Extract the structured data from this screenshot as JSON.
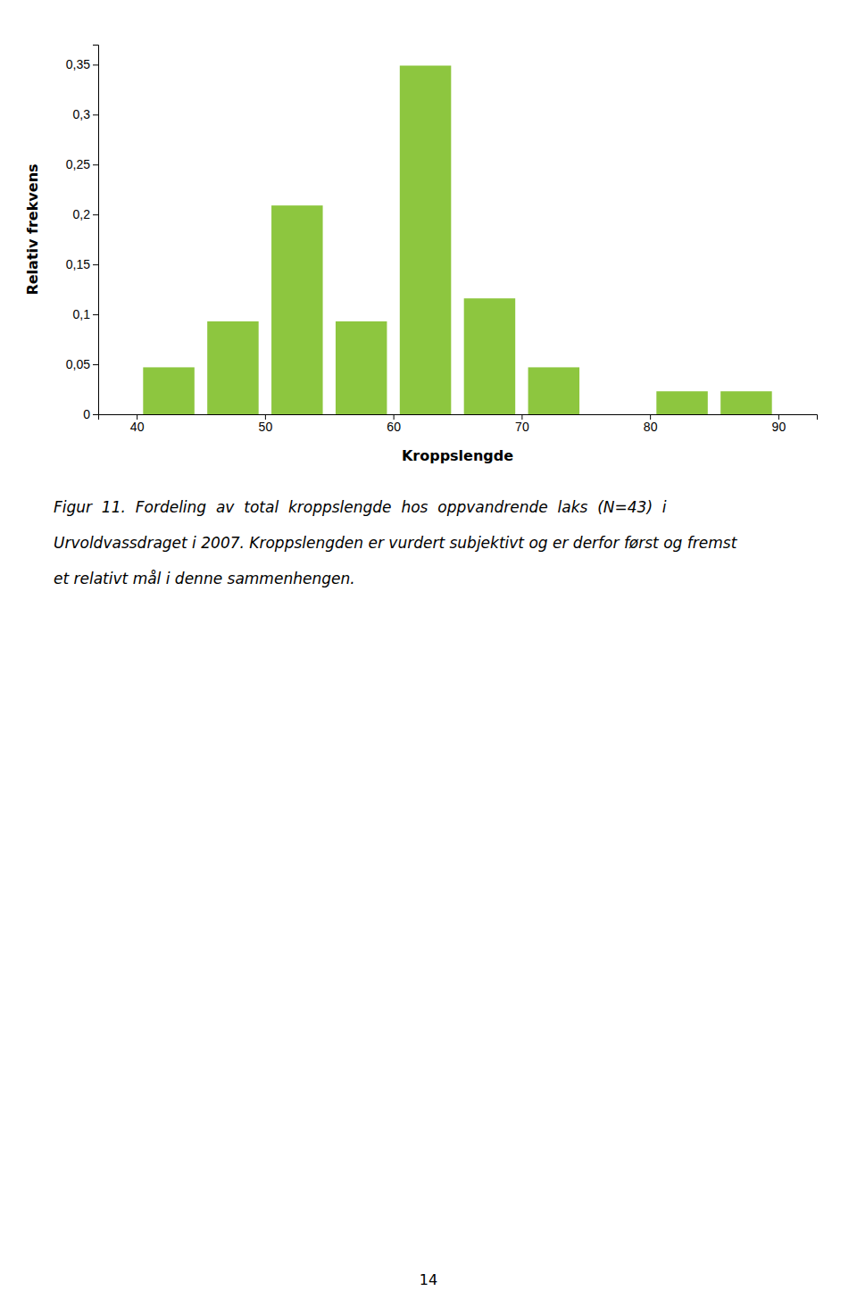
{
  "chart_data": {
    "type": "bar",
    "x": [
      42.5,
      47.5,
      52.5,
      57.5,
      62.5,
      67.5,
      72.5,
      77.5,
      82.5,
      87.5
    ],
    "values": [
      0.047,
      0.093,
      0.209,
      0.093,
      0.349,
      0.116,
      0.047,
      0.0,
      0.023,
      0.023
    ],
    "color": "#8dc63f",
    "xlabel": "Kroppslengde",
    "ylabel": "Relativ frekvens",
    "xlim": [
      37,
      93
    ],
    "ylim": [
      0,
      0.37
    ],
    "xticks": [
      40,
      50,
      60,
      70,
      80,
      90
    ],
    "yticks": [
      0,
      {
        "value": 0.05,
        "label": "0,05"
      },
      {
        "value": 0.1,
        "label": "0,1"
      },
      {
        "value": 0.15,
        "label": "0,15"
      },
      {
        "value": 0.2,
        "label": "0,2"
      },
      {
        "value": 0.25,
        "label": "0,25"
      },
      {
        "value": 0.3,
        "label": "0,3"
      },
      {
        "value": 0.35,
        "label": "0,35"
      }
    ],
    "grid": false,
    "annotations": [
      "Figur  11.  Fordeling  av  total  kroppslengde  hos  oppvandrende  laks  (N=43)  i",
      "Urvoldvassdraget i 2007. Kroppslengden er vurdert subjektivt og er derfor først og fremst",
      "et relativt mål i denne sammenhengen.",
      "14"
    ]
  }
}
